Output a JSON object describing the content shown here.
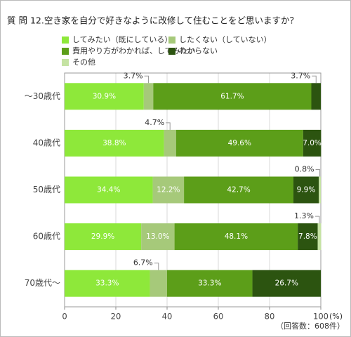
{
  "chart_data": {
    "type": "bar",
    "orientation": "horizontal",
    "stacked": true,
    "title": "質 問 12.空き家を自分で好きなように改修して住むことをど思いますか？",
    "categories": [
      "～30歳代",
      "40歳代",
      "50歳代",
      "60歳代",
      "70歳代～"
    ],
    "series": [
      {
        "name": "してみたい（既にしている）",
        "color": "#8ee83a",
        "values": [
          30.9,
          38.8,
          34.4,
          29.9,
          33.3
        ],
        "value_labels": [
          "30.9%",
          "38.8%",
          "34.4%",
          "29.9%",
          "33.3%"
        ]
      },
      {
        "name": "したくない（していない）",
        "color": "#a6c97a",
        "values": [
          3.7,
          4.7,
          12.2,
          13.0,
          6.7
        ],
        "value_labels": [
          "3.7%",
          "4.7%",
          "12.2%",
          "13.0%",
          "6.7%"
        ]
      },
      {
        "name": "費用やり方がわかれば、してみたい",
        "color": "#5c9e19",
        "values": [
          61.7,
          49.6,
          42.7,
          48.1,
          33.3
        ],
        "value_labels": [
          "61.7%",
          "49.6%",
          "42.7%",
          "48.1%",
          "33.3%"
        ]
      },
      {
        "name": "わからない",
        "color": "#2c5410",
        "values": [
          3.7,
          7.0,
          9.9,
          7.8,
          26.7
        ],
        "value_labels": [
          "3.7%",
          "7.0%",
          "9.9%",
          "7.8%",
          "26.7%"
        ]
      },
      {
        "name": "その他",
        "color": "#c5e3a3",
        "values": [
          0,
          0,
          0.8,
          1.3,
          0
        ],
        "value_labels": [
          null,
          null,
          "0.8%",
          "1.3%",
          null
        ]
      }
    ],
    "xlim": [
      0,
      100
    ],
    "xticks": [
      0,
      20,
      40,
      60,
      80,
      100
    ],
    "xlabel": "(%)",
    "note": "（回答数：608件）",
    "grid": true
  }
}
